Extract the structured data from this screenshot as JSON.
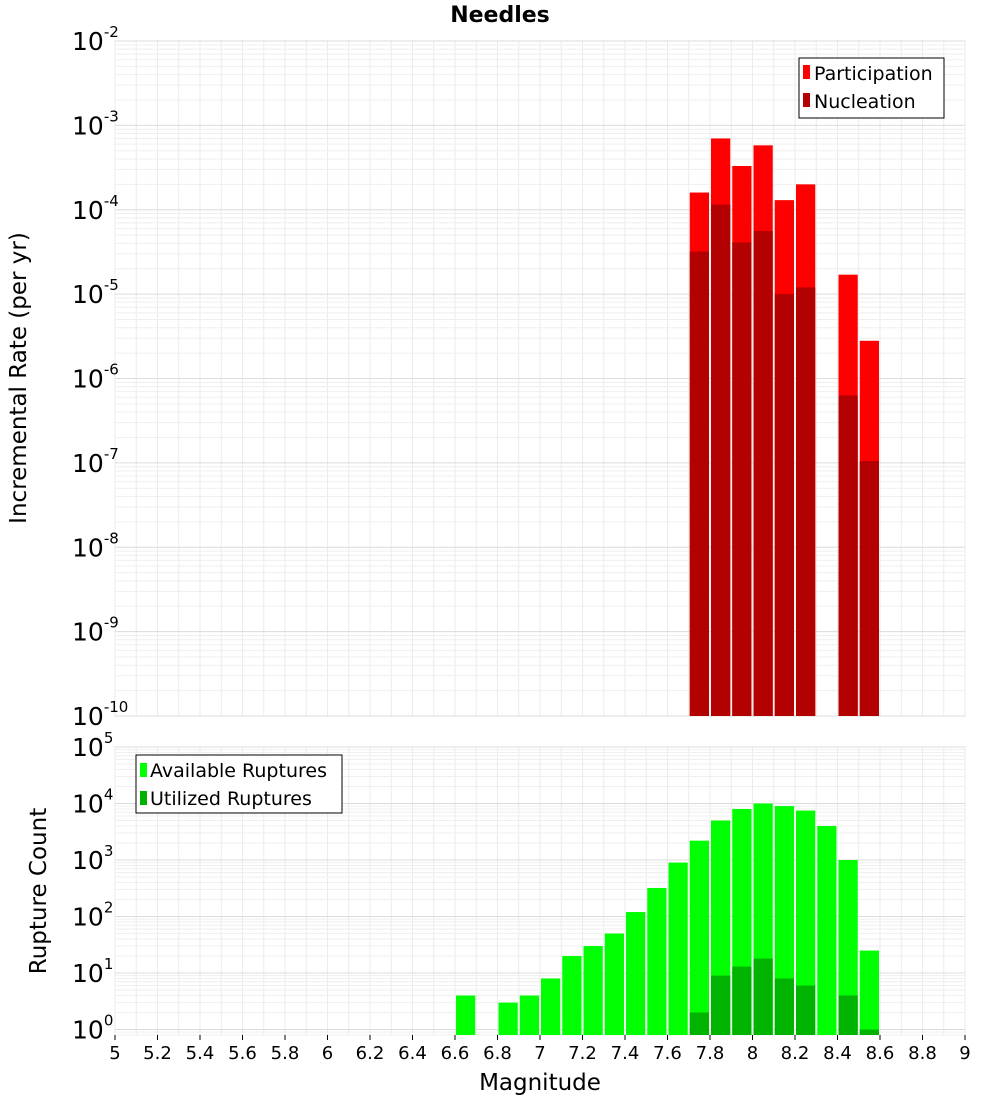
{
  "title": "Needles",
  "xlabel": "Magnitude",
  "xlim": [
    5,
    9
  ],
  "xticks": [
    "5",
    "5.2",
    "5.4",
    "5.6",
    "5.8",
    "6",
    "6.2",
    "6.4",
    "6.6",
    "6.8",
    "7",
    "7.2",
    "7.4",
    "7.6",
    "7.8",
    "8",
    "8.2",
    "8.4",
    "8.6",
    "8.8",
    "9"
  ],
  "chart_data": [
    {
      "type": "bar",
      "title": "Needles",
      "xlabel": "Magnitude",
      "ylabel": "Incremental Rate (per yr)",
      "yscale": "log",
      "ylim": [
        1e-10,
        0.01
      ],
      "yticks": [
        {
          "base": "10",
          "exp": "-10"
        },
        {
          "base": "10",
          "exp": "-9"
        },
        {
          "base": "10",
          "exp": "-8"
        },
        {
          "base": "10",
          "exp": "-7"
        },
        {
          "base": "10",
          "exp": "-6"
        },
        {
          "base": "10",
          "exp": "-5"
        },
        {
          "base": "10",
          "exp": "-4"
        },
        {
          "base": "10",
          "exp": "-3"
        },
        {
          "base": "10",
          "exp": "-2"
        }
      ],
      "grid": true,
      "legend_position": "top-right",
      "series": [
        {
          "name": "Participation",
          "color": "#ff0000",
          "x": [
            7.75,
            7.85,
            7.95,
            8.05,
            8.15,
            8.25,
            8.45,
            8.55
          ],
          "values": [
            0.00016,
            0.0007,
            0.00033,
            0.00058,
            0.00013,
            0.0002,
            1.7e-05,
            2.8e-06
          ]
        },
        {
          "name": "Nucleation",
          "color": "#b30000",
          "x": [
            7.75,
            7.85,
            7.95,
            8.05,
            8.15,
            8.25,
            8.45,
            8.55
          ],
          "values": [
            3.2e-05,
            0.000115,
            4.1e-05,
            5.6e-05,
            1e-05,
            1.2e-05,
            6.3e-07,
            1.05e-07
          ]
        }
      ]
    },
    {
      "type": "bar",
      "xlabel": "Magnitude",
      "ylabel": "Rupture Count",
      "yscale": "log",
      "ylim": [
        0.8,
        100000.0
      ],
      "yticks": [
        {
          "base": "10",
          "exp": "0"
        },
        {
          "base": "10",
          "exp": "1"
        },
        {
          "base": "10",
          "exp": "2"
        },
        {
          "base": "10",
          "exp": "3"
        },
        {
          "base": "10",
          "exp": "4"
        },
        {
          "base": "10",
          "exp": "5"
        }
      ],
      "grid": true,
      "legend_position": "top-left",
      "series": [
        {
          "name": "Available Ruptures",
          "color": "#00ff00",
          "x": [
            6.65,
            6.85,
            6.95,
            7.05,
            7.15,
            7.25,
            7.35,
            7.45,
            7.55,
            7.65,
            7.75,
            7.85,
            7.95,
            8.05,
            8.15,
            8.25,
            8.35,
            8.45,
            8.55
          ],
          "values": [
            4,
            3,
            4,
            8,
            20,
            30,
            50,
            120,
            320,
            900,
            2200,
            5000,
            8000,
            10000,
            9000,
            7500,
            4000,
            1000,
            25
          ]
        },
        {
          "name": "Utilized Ruptures",
          "color": "#00b300",
          "x": [
            7.75,
            7.85,
            7.95,
            8.05,
            8.15,
            8.25,
            8.45,
            8.55
          ],
          "values": [
            2,
            9,
            13,
            18,
            8,
            6,
            4,
            1
          ]
        }
      ]
    }
  ]
}
